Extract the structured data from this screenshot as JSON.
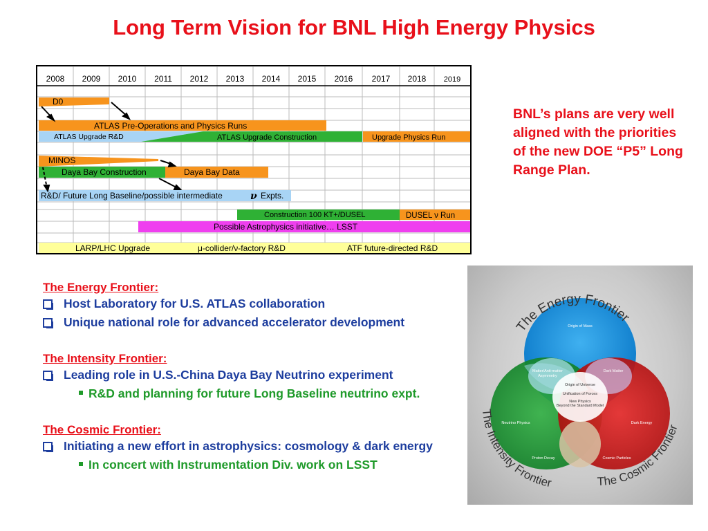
{
  "title": "Long Term Vision for BNL High Energy Physics",
  "timeline": {
    "years": [
      "2008",
      "2009",
      "2010",
      "2011",
      "2012",
      "2013",
      "2014",
      "2015",
      "2016",
      "2017",
      "2018",
      "2019"
    ],
    "bars": {
      "d0": "D0",
      "atlas_runs": "ATLAS Pre-Operations and Physics Runs",
      "atlas_rd": "ATLAS Upgrade R&D",
      "atlas_construction": "ATLAS Upgrade Construction",
      "upgrade_physics": "Upgrade Physics Run",
      "minos": "MINOS",
      "daya_construction": "Daya Bay Construction",
      "daya_data": "Daya Bay Data",
      "rd_future": "R&D/ Future Long Baseline/possible intermediate",
      "nu_symbol": "ν",
      "expts": "Expts.",
      "construction_100kt": "Construction 100 KT+/DUSEL",
      "dusel_run": "DUSEL ν Run",
      "astro": "Possible Astrophysics initiative… LSST",
      "larp": "LARP/LHC Upgrade",
      "mu_collider": "μ-collider/ν-factory R&D",
      "atf": "ATF future-directed R&D"
    }
  },
  "side_note": "BNL’s plans are very well aligned with the priorities of the new DOE “P5” Long Range Plan.",
  "frontiers": {
    "energy": {
      "heading": "The Energy Frontier:",
      "items": [
        "Host Laboratory for U.S. ATLAS collaboration",
        "Unique national role for advanced accelerator development"
      ]
    },
    "intensity": {
      "heading": "The Intensity Frontier:",
      "items": [
        "Leading role in U.S.-China Daya Bay Neutrino experiment"
      ],
      "sub": "R&D and planning for future Long Baseline neutrino expt."
    },
    "cosmic": {
      "heading": "The Cosmic Frontier:",
      "items": [
        "Initiating a new effort in astrophysics: cosmology & dark energy"
      ],
      "sub": "In concert with Instrumentation Div. work on LSST"
    }
  },
  "venn": {
    "energy_frontier": "The Energy Frontier",
    "intensity_frontier": "The Intensity Frontier",
    "cosmic_frontier": "The Cosmic Frontier",
    "origin_of_mass": "Origin of Mass",
    "matter_antimatter_1": "Matter/Anti-matter",
    "matter_antimatter_2": "Asymmetry",
    "dark_matter": "Dark Matter",
    "origin_universe": "Origin of Universe",
    "unification": "Unification of Forces",
    "new_physics": "New Physics",
    "beyond_sm": "Beyond the Standard Model",
    "neutrino_physics": "Neutrino Physics",
    "dark_energy": "Dark Energy",
    "proton_decay": "Proton Decay",
    "cosmic_particles": "Cosmic Particles"
  },
  "colors": {
    "title_red": "#e8101a",
    "orange": "#f7941d",
    "green": "#2fb135",
    "light_blue": "#a8d4f5",
    "magenta": "#ef3fef",
    "yellow": "#ffff99",
    "blue_text": "#1d3d9e",
    "green_text": "#1f9a2a"
  }
}
